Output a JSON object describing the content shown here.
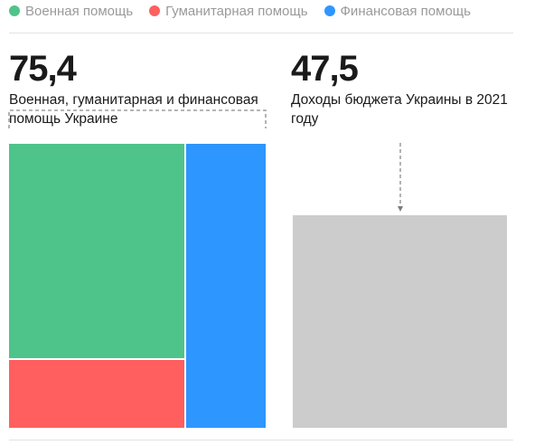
{
  "legend": [
    {
      "label": "Военная помощь",
      "color": "#4fc48a"
    },
    {
      "label": "Гуманитарная помощь",
      "color": "#ff5f5f"
    },
    {
      "label": "Финансовая помощь",
      "color": "#2e96ff"
    }
  ],
  "left_panel": {
    "value": "75,4",
    "caption": "Военная, гуманитарная и финансовая помощь Украине"
  },
  "right_panel": {
    "value": "47,5",
    "caption": "Доходы бюджета Украины в 2021 году"
  },
  "chart_data": {
    "type": "treemap",
    "series": [
      {
        "name": "Военная помощь",
        "value": 38.8,
        "color": "#4fc48a"
      },
      {
        "name": "Гуманитарная помощь",
        "value": 12.7,
        "color": "#ff5f5f"
      },
      {
        "name": "Финансовая помощь",
        "value": 23.9,
        "color": "#2e96ff"
      }
    ],
    "total": 75.4,
    "comparison": {
      "name": "Доходы бюджета Украины в 2021 году",
      "value": 47.5,
      "color": "#cccccc"
    }
  }
}
